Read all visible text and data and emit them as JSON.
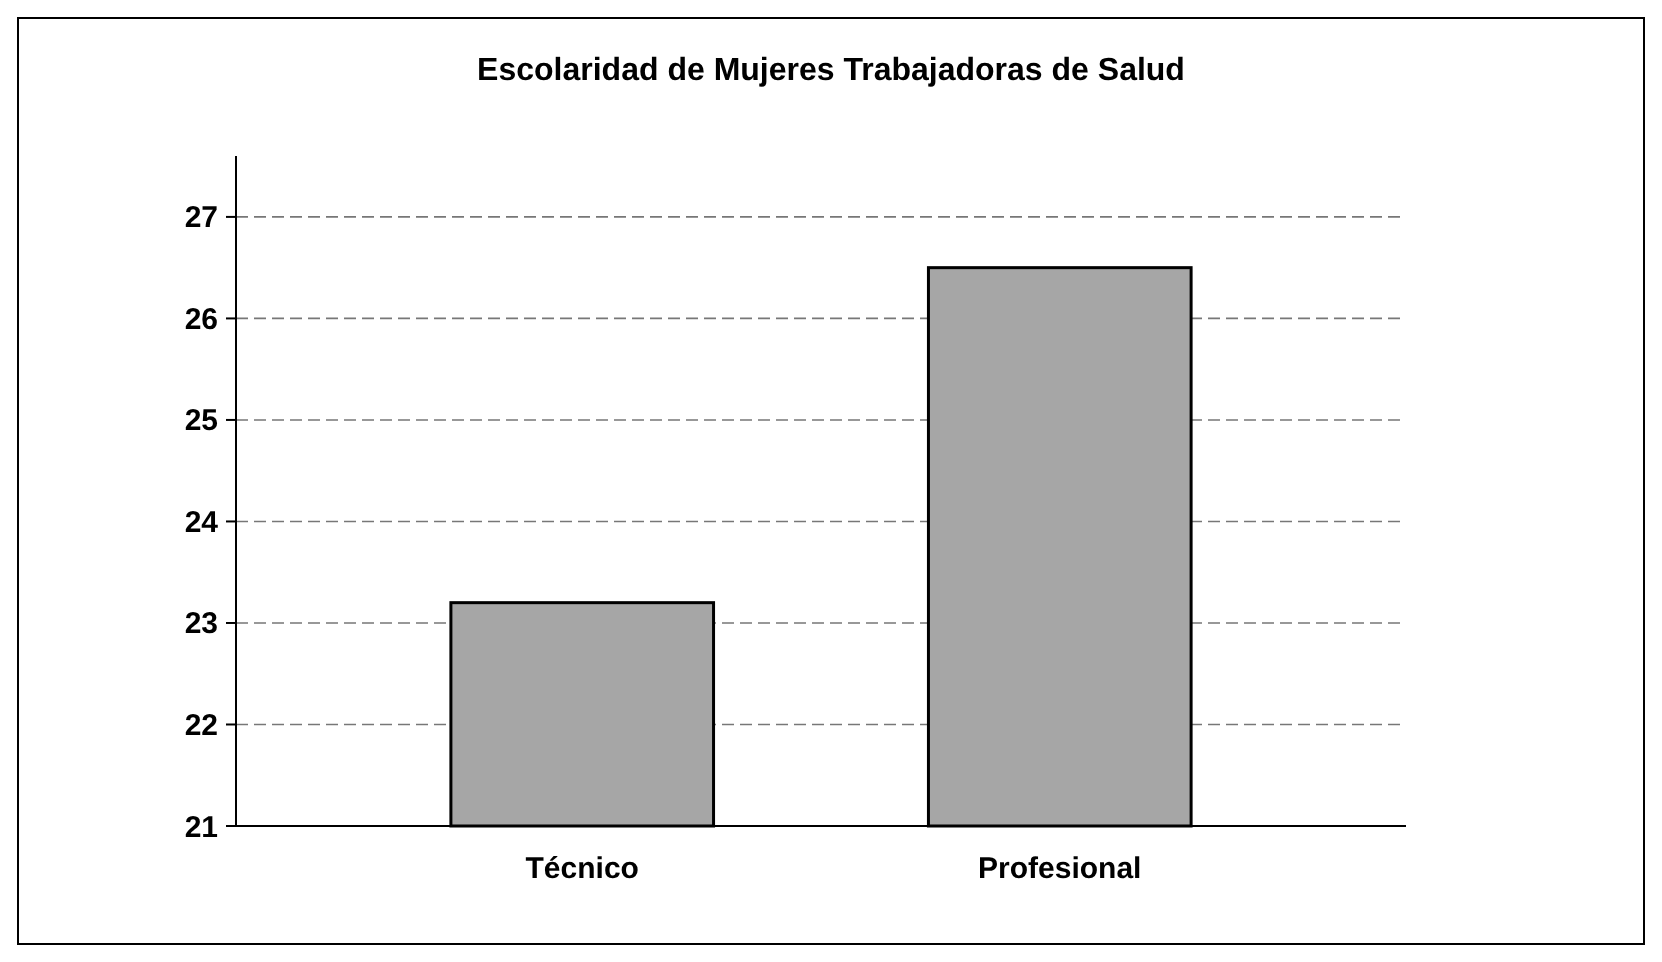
{
  "chart_data": {
    "type": "bar",
    "title": "Escolaridad de Mujeres Trabajadoras de Salud",
    "categories": [
      "Técnico",
      "Profesional"
    ],
    "values": [
      23.2,
      26.5
    ],
    "color": "#a6a6a6",
    "ylim": [
      21,
      27.6
    ],
    "yticks": [
      21,
      22,
      23,
      24,
      25,
      26,
      27
    ],
    "grid": "y"
  }
}
